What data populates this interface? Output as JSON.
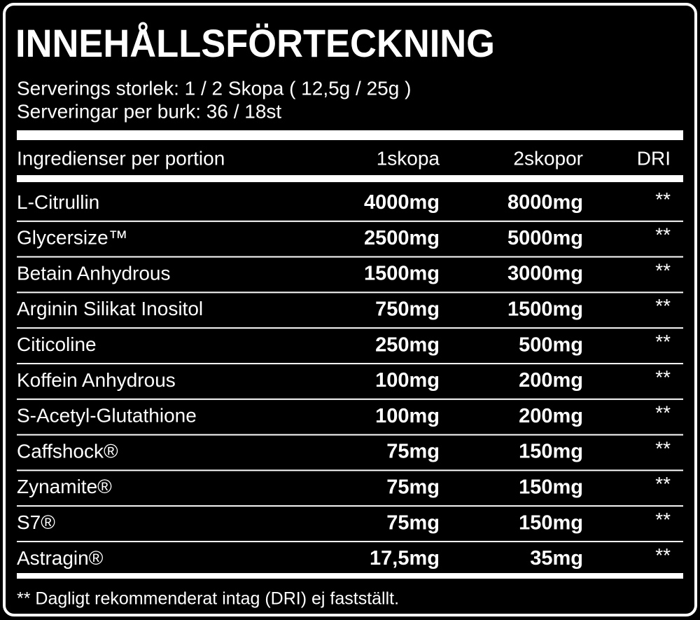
{
  "header": {
    "title": "INNEHÅLLSFÖRTECKNING",
    "lines": [
      "Serverings storlek: 1 / 2 Skopa ( 12,5g / 25g )",
      "Serveringar per burk: 36 / 18st"
    ]
  },
  "table": {
    "columns": [
      "Ingredienser per portion",
      "1skopa",
      "2skopor",
      "DRI"
    ],
    "rows": [
      [
        "L-Citrullin",
        "4000mg",
        "8000mg",
        "**"
      ],
      [
        "Glycersize™",
        "2500mg",
        "5000mg",
        "**"
      ],
      [
        "Betain Anhydrous",
        "1500mg",
        "3000mg",
        "**"
      ],
      [
        "Arginin Silikat Inositol",
        "750mg",
        "1500mg",
        "**"
      ],
      [
        "Citicoline",
        "250mg",
        "500mg",
        "**"
      ],
      [
        "Koffein Anhydrous",
        "100mg",
        "200mg",
        "**"
      ],
      [
        "S-Acetyl-Glutathione",
        "100mg",
        "200mg",
        "**"
      ],
      [
        "Caffshock®",
        "75mg",
        "150mg",
        "**"
      ],
      [
        "Zynamite®",
        "75mg",
        "150mg",
        "**"
      ],
      [
        "S7®",
        "75mg",
        "150mg",
        "**"
      ],
      [
        "Astragin®",
        "17,5mg",
        "35mg",
        "**"
      ]
    ]
  },
  "footnote": "** Dagligt rekommenderat intag (DRI) ej fastställt."
}
